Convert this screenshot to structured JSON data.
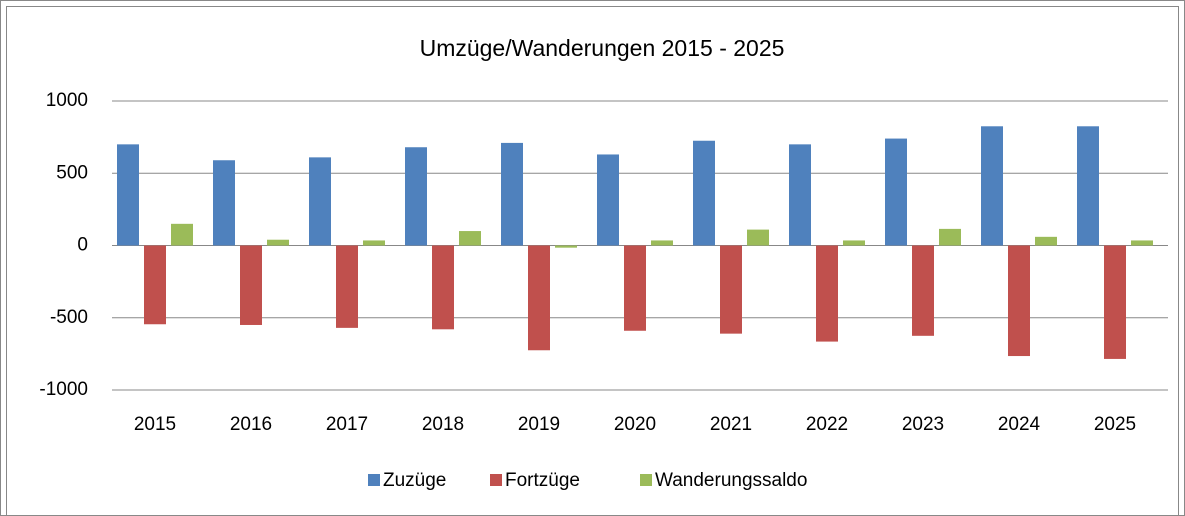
{
  "chart_data": {
    "type": "bar",
    "title": "Umzüge/Wanderungen 2015 - 2025",
    "categories": [
      "2015",
      "2016",
      "2017",
      "2018",
      "2019",
      "2020",
      "2021",
      "2022",
      "2023",
      "2024",
      "2025"
    ],
    "series": [
      {
        "name": "Zuzüge",
        "color": "#4f81bd",
        "values": [
          700,
          590,
          610,
          680,
          710,
          630,
          725,
          700,
          740,
          825,
          825
        ]
      },
      {
        "name": "Fortzüge",
        "color": "#c0504d",
        "values": [
          -545,
          -550,
          -570,
          -580,
          -725,
          -590,
          -610,
          -665,
          -625,
          -765,
          -785
        ]
      },
      {
        "name": "Wanderungssaldo",
        "color": "#9bbb59",
        "values": [
          150,
          40,
          35,
          100,
          -15,
          35,
          110,
          35,
          115,
          60,
          35
        ]
      }
    ],
    "ylim": [
      -1000,
      1000
    ],
    "yticks": [
      -1000,
      -500,
      0,
      500,
      1000
    ],
    "grid": true,
    "legend": "bottom"
  }
}
